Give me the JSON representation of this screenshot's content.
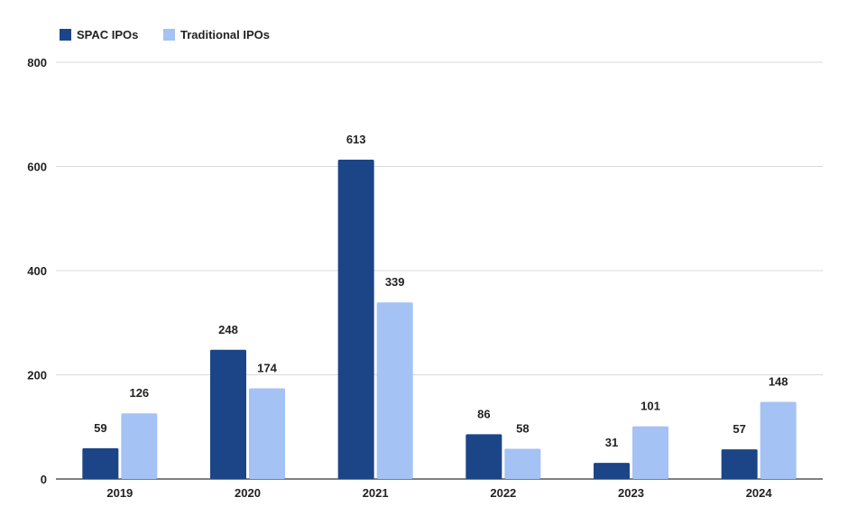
{
  "chart_data": {
    "type": "bar",
    "categories": [
      "2019",
      "2020",
      "2021",
      "2022",
      "2023",
      "2024"
    ],
    "series": [
      {
        "name": "SPAC IPOs",
        "values": [
          59,
          248,
          613,
          86,
          31,
          57
        ],
        "color": "#1c4587"
      },
      {
        "name": "Traditional IPOs",
        "values": [
          126,
          174,
          339,
          58,
          101,
          148
        ],
        "color": "#a4c2f4"
      }
    ],
    "ylim": [
      0,
      800
    ],
    "yticks": [
      0,
      200,
      400,
      600,
      800
    ],
    "grid": true,
    "legend": "top-left",
    "data_labels": true
  }
}
